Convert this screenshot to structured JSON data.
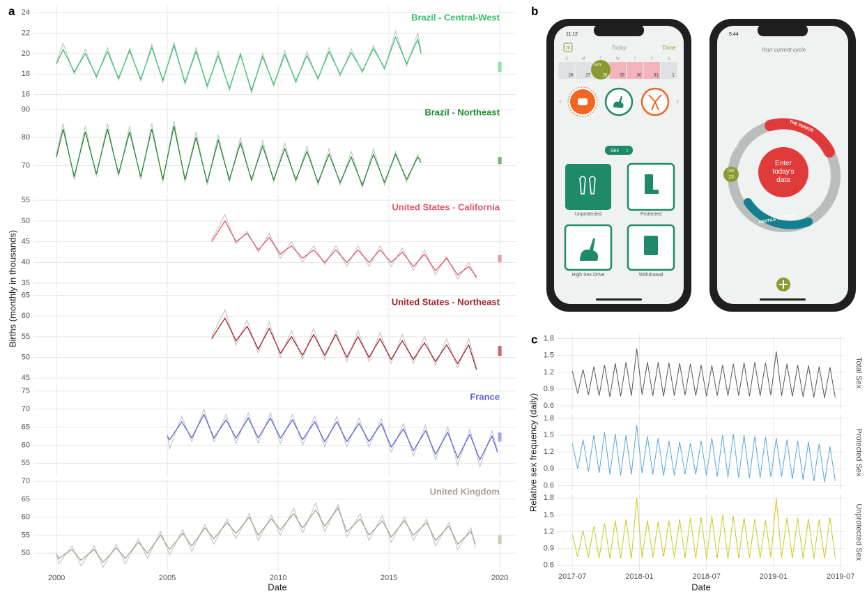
{
  "panel_labels": [
    "a",
    "b",
    "c"
  ],
  "panel_a": {
    "xlabel": "Date",
    "ylabel": "Births (monthly in thousands)"
  },
  "panel_b": {
    "phone1": {
      "time": "11:12",
      "calendar_icon": "28",
      "header": "Today",
      "done": "Done",
      "weekdays": [
        "S",
        "M",
        "T",
        "W",
        "T",
        "F",
        "S"
      ],
      "dates": [
        "26",
        "27",
        "28",
        "29",
        "30",
        "31",
        "1"
      ],
      "month": "MAY",
      "section": "Sex",
      "info": "i",
      "options": [
        "Unprotected",
        "Protected",
        "High Sex Drive",
        "Withdrawal"
      ]
    },
    "phone2": {
      "time": "5:44",
      "header": "Your current cycle",
      "period": "THE PERIOD",
      "pms": "PMS",
      "day_label": "DAY",
      "day_number": "23",
      "center": [
        "Enter",
        "today's",
        "data"
      ],
      "fertile": "FERTILE WINDOW"
    }
  },
  "chart_data": [
    {
      "type": "line",
      "title": "Brazil - Central-West",
      "title_color": "#35c46b",
      "x": [
        2000,
        2000.3,
        2000.8,
        2001.3,
        2001.8,
        2002.3,
        2002.8,
        2003.3,
        2003.8,
        2004.3,
        2004.8,
        2005.3,
        2005.8,
        2006.3,
        2006.8,
        2007.3,
        2007.8,
        2008.3,
        2008.8,
        2009.3,
        2009.8,
        2010.3,
        2010.8,
        2011.3,
        2011.8,
        2012.3,
        2012.8,
        2013.3,
        2013.8,
        2014.3,
        2014.8,
        2015.3,
        2015.8,
        2016.3,
        2016.45
      ],
      "series": [
        {
          "color": "#c4c4c4",
          "values": [
            19.2,
            21.0,
            18.0,
            20.4,
            17.6,
            20.6,
            17.4,
            20.5,
            17.3,
            20.9,
            17.2,
            21.1,
            17.0,
            20.6,
            16.6,
            20.2,
            16.4,
            20.1,
            16.1,
            20.0,
            16.8,
            20.3,
            17.1,
            20.2,
            17.4,
            20.6,
            17.8,
            20.5,
            18.1,
            20.8,
            18.4,
            22.2,
            18.8,
            22.0,
            20.3
          ]
        },
        {
          "color": "#35c46b",
          "values": [
            19.0,
            20.4,
            18.2,
            20.0,
            17.8,
            20.2,
            17.6,
            20.3,
            17.5,
            20.6,
            17.4,
            20.8,
            17.2,
            20.2,
            16.9,
            19.8,
            16.6,
            19.9,
            16.4,
            19.7,
            17.0,
            19.9,
            17.3,
            19.8,
            17.6,
            20.2,
            18.0,
            20.1,
            18.3,
            20.5,
            18.6,
            21.6,
            19.0,
            21.4,
            20.0
          ]
        }
      ],
      "xlim": [
        1998.96,
        2020.72
      ],
      "xticks": [
        2000,
        2005,
        2010,
        2015,
        2020
      ],
      "ylim": [
        15.7,
        24.7
      ],
      "yticks": [
        16,
        18,
        20,
        22,
        24
      ],
      "grid": true,
      "range_marker": {
        "x": 2020,
        "values": [
          18.2,
          19.2
        ],
        "color": "#8fe0ac"
      }
    },
    {
      "type": "line",
      "title": "Brazil - Northeast",
      "title_color": "#1e8a32",
      "x": [
        2000,
        2000.3,
        2000.8,
        2001.3,
        2001.8,
        2002.3,
        2002.8,
        2003.3,
        2003.8,
        2004.3,
        2004.8,
        2005.3,
        2005.8,
        2006.3,
        2006.8,
        2007.3,
        2007.8,
        2008.3,
        2008.8,
        2009.3,
        2009.8,
        2010.3,
        2010.8,
        2011.3,
        2011.8,
        2012.3,
        2012.8,
        2013.3,
        2013.8,
        2014.3,
        2014.8,
        2015.3,
        2015.8,
        2016.3,
        2016.45
      ],
      "series": [
        {
          "color": "#c4c4c4",
          "values": [
            74,
            85,
            65,
            84,
            66,
            85,
            66,
            84,
            65,
            85,
            64,
            86,
            64,
            82,
            63,
            81,
            64,
            80,
            64,
            79,
            64,
            78,
            64,
            77,
            63,
            76,
            63,
            75,
            62,
            76,
            63,
            75,
            64,
            74,
            72
          ]
        },
        {
          "color": "#1e8a32",
          "values": [
            73,
            83,
            66,
            82,
            67,
            83,
            67,
            82,
            66,
            83,
            65,
            84,
            65,
            80,
            64,
            79,
            65,
            78,
            65,
            77,
            65,
            76,
            65,
            75,
            64,
            74,
            64,
            73,
            63,
            74,
            64,
            74,
            65,
            73,
            71
          ]
        }
      ],
      "xlim": [
        1998.96,
        2020.72
      ],
      "xticks": [
        2000,
        2005,
        2010,
        2015,
        2020
      ],
      "ylim": [
        60.4,
        93.2
      ],
      "yticks": [
        70,
        80,
        90
      ],
      "grid": true,
      "range_marker": {
        "x": 2020,
        "values": [
          70.5,
          73
        ],
        "color": "#6fb27c"
      }
    },
    {
      "type": "line",
      "title": "United States - California",
      "title_color": "#e5566b",
      "x": [
        2007.0,
        2007.6,
        2008.1,
        2008.6,
        2009.1,
        2009.6,
        2010.1,
        2010.6,
        2011.1,
        2011.6,
        2012.1,
        2012.6,
        2013.1,
        2013.6,
        2014.1,
        2014.6,
        2015.1,
        2015.6,
        2016.1,
        2016.6,
        2017.1,
        2017.6,
        2018.1,
        2018.6,
        2018.95
      ],
      "series": [
        {
          "color": "#c4c4c4",
          "values": [
            45.5,
            51.5,
            44.5,
            47.5,
            42.5,
            47,
            41,
            45,
            40,
            44,
            39.5,
            44,
            39,
            44,
            39,
            44,
            39,
            43.5,
            38,
            43,
            37,
            41.5,
            36,
            40,
            36
          ]
        },
        {
          "color": "#e5566b",
          "values": [
            45,
            50,
            45,
            47,
            43,
            46,
            42,
            44,
            41,
            43,
            40,
            43,
            40,
            43,
            40,
            43,
            40,
            42.5,
            39,
            42,
            38,
            41,
            37,
            39,
            36.5
          ]
        }
      ],
      "xlim": [
        1998.96,
        2020.72
      ],
      "xticks": [
        2000,
        2005,
        2010,
        2015,
        2020
      ],
      "ylim": [
        34,
        56.2
      ],
      "yticks": [
        35,
        40,
        45,
        50,
        55
      ],
      "grid": true,
      "range_marker": {
        "x": 2020,
        "values": [
          40,
          41.8
        ],
        "color": "#ee97a4"
      }
    },
    {
      "type": "line",
      "title": "United States - Northeast",
      "title_color": "#a5202a",
      "x": [
        2007.0,
        2007.6,
        2008.1,
        2008.6,
        2009.1,
        2009.6,
        2010.1,
        2010.6,
        2011.1,
        2011.6,
        2012.1,
        2012.6,
        2013.1,
        2013.6,
        2014.1,
        2014.6,
        2015.1,
        2015.6,
        2016.1,
        2016.6,
        2017.1,
        2017.6,
        2018.1,
        2018.6,
        2018.95
      ],
      "series": [
        {
          "color": "#c4c4c4",
          "values": [
            55,
            61.5,
            53,
            59,
            51,
            58.5,
            50,
            56.5,
            49.5,
            57,
            49.5,
            56.5,
            49,
            56.5,
            49,
            56,
            48.5,
            55.5,
            48.5,
            55,
            48,
            54.5,
            47.5,
            54.5,
            47.5
          ]
        },
        {
          "color": "#a5202a",
          "values": [
            54.5,
            59.5,
            54,
            57.5,
            52,
            57,
            51,
            55,
            50.5,
            55.5,
            50.5,
            55.5,
            50,
            55,
            50,
            54.5,
            49.5,
            54,
            49.5,
            53.5,
            49,
            53,
            48.5,
            53,
            47
          ]
        }
      ],
      "xlim": [
        1998.96,
        2020.72
      ],
      "xticks": [
        2000,
        2005,
        2010,
        2015,
        2020
      ],
      "ylim": [
        44,
        66.3
      ],
      "yticks": [
        45,
        50,
        55,
        60,
        65
      ],
      "grid": true,
      "range_marker": {
        "x": 2020,
        "values": [
          50.3,
          52.8
        ],
        "color": "#c46a72"
      }
    },
    {
      "type": "line",
      "title": "France",
      "title_color": "#5b63dc",
      "x": [
        2005.0,
        2005.1,
        2005.65,
        2006.1,
        2006.65,
        2007.1,
        2007.65,
        2008.1,
        2008.65,
        2009.1,
        2009.65,
        2010.1,
        2010.65,
        2011.1,
        2011.65,
        2012.1,
        2012.65,
        2013.1,
        2013.65,
        2014.1,
        2014.65,
        2015.1,
        2015.65,
        2016.1,
        2016.65,
        2017.1,
        2017.65,
        2018.1,
        2018.65,
        2019.1,
        2019.65,
        2019.9
      ],
      "series": [
        {
          "color": "#c4c4c4",
          "values": [
            63,
            59,
            68,
            61,
            70,
            61,
            68.5,
            60.5,
            69,
            60.5,
            69,
            60.5,
            68.5,
            60,
            68,
            59.5,
            68,
            59.5,
            67.5,
            59.5,
            67.5,
            58,
            66,
            57,
            65.5,
            56,
            65,
            54.5,
            64.5,
            54,
            64,
            58.5
          ]
        },
        {
          "color": "#5b63dc",
          "values": [
            62.5,
            61.5,
            66.5,
            62,
            68.5,
            62,
            67,
            62,
            67.5,
            62,
            67.5,
            62,
            67,
            61.5,
            66.5,
            61,
            66.5,
            61,
            66,
            61,
            66,
            59.5,
            64.5,
            58.5,
            64,
            57.5,
            63.5,
            56.5,
            63,
            56,
            62.5,
            58
          ]
        }
      ],
      "xlim": [
        1998.96,
        2020.72
      ],
      "xticks": [
        2000,
        2005,
        2010,
        2015,
        2020
      ],
      "ylim": [
        51.2,
        76.7
      ],
      "yticks": [
        55,
        60,
        65,
        70,
        75
      ],
      "grid": true,
      "range_marker": {
        "x": 2020,
        "values": [
          61,
          63.5
        ],
        "color": "#a3a8ee"
      }
    },
    {
      "type": "line",
      "title": "United Kingdom",
      "title_color": "#aaa192",
      "x": [
        2000.0,
        2000.1,
        2000.7,
        2001.1,
        2001.7,
        2002.1,
        2002.7,
        2003.1,
        2003.7,
        2004.1,
        2004.7,
        2005.1,
        2005.7,
        2006.1,
        2006.7,
        2007.1,
        2007.7,
        2008.1,
        2008.7,
        2009.1,
        2009.7,
        2010.1,
        2010.7,
        2011.1,
        2011.7,
        2012.1,
        2012.7,
        2013.1,
        2013.7,
        2014.1,
        2014.7,
        2015.1,
        2015.7,
        2016.1,
        2016.7,
        2017.1,
        2017.7,
        2018.1,
        2018.7,
        2018.9
      ],
      "series": [
        {
          "color": "#c4c4c4",
          "values": [
            50,
            47,
            52,
            46.5,
            52,
            46,
            52.5,
            47,
            54,
            48.5,
            56,
            49.5,
            56.5,
            50.5,
            58,
            52.5,
            59.5,
            54,
            61,
            53.5,
            60.5,
            55,
            62.5,
            55.5,
            64,
            56,
            63.5,
            54.5,
            61,
            53.5,
            60.5,
            53,
            60,
            53.5,
            59.5,
            52,
            58.5,
            51,
            57,
            51.5
          ]
        },
        {
          "color": "#aaa192",
          "values": [
            49.5,
            48.5,
            51,
            48,
            51,
            47.5,
            51.5,
            48.5,
            53,
            50,
            55,
            51,
            55.5,
            52,
            57,
            54,
            58.5,
            55.5,
            60,
            55,
            59.5,
            56.5,
            61,
            57,
            62,
            57.5,
            62.5,
            56,
            59.5,
            55,
            59,
            54.5,
            59,
            55,
            58.5,
            53.5,
            57.5,
            52.5,
            56,
            52.5
          ]
        }
      ],
      "xlim": [
        1998.96,
        2020.72
      ],
      "xticks": [
        2000,
        2005,
        2010,
        2015,
        2020
      ],
      "ylim": [
        44.8,
        70.4
      ],
      "yticks": [
        50,
        55,
        60,
        65,
        70
      ],
      "grid": true,
      "range_marker": {
        "x": 2020,
        "values": [
          52.5,
          55
        ],
        "color": "#cfc9bd"
      }
    },
    {
      "type": "facet-line",
      "xlabel": "Date",
      "ylabel": "Relative sex frequency (daily)",
      "x": [
        2017.5,
        2017.54,
        2017.58,
        2017.62,
        2017.66,
        2017.7,
        2017.74,
        2017.78,
        2017.82,
        2017.86,
        2017.9,
        2017.94,
        2017.98,
        2018.02,
        2018.06,
        2018.1,
        2018.14,
        2018.18,
        2018.22,
        2018.26,
        2018.3,
        2018.34,
        2018.38,
        2018.42,
        2018.46,
        2018.5,
        2018.54,
        2018.58,
        2018.62,
        2018.66,
        2018.7,
        2018.74,
        2018.78,
        2018.82,
        2018.86,
        2018.9,
        2018.94,
        2018.98,
        2019.02,
        2019.06,
        2019.1,
        2019.14,
        2019.18,
        2019.22,
        2019.26,
        2019.3,
        2019.34,
        2019.38,
        2019.42,
        2019.46
      ],
      "series": [
        {
          "name": "Total Sex",
          "color": "#555555",
          "values": [
            1.22,
            0.82,
            1.25,
            0.8,
            1.3,
            0.78,
            1.33,
            0.76,
            1.36,
            0.77,
            1.38,
            0.78,
            1.62,
            0.8,
            1.38,
            0.78,
            1.38,
            0.77,
            1.37,
            0.78,
            1.36,
            0.79,
            1.35,
            0.78,
            1.33,
            0.77,
            1.32,
            0.78,
            1.33,
            0.78,
            1.35,
            0.78,
            1.37,
            0.77,
            1.38,
            0.78,
            1.37,
            0.79,
            1.57,
            0.78,
            1.35,
            0.77,
            1.33,
            0.76,
            1.32,
            0.75,
            1.3,
            0.74,
            1.29,
            0.75
          ]
        },
        {
          "name": "Protected Sex",
          "color": "#55a7e2",
          "values": [
            1.35,
            0.9,
            1.42,
            0.85,
            1.5,
            0.83,
            1.55,
            0.8,
            1.52,
            0.78,
            1.5,
            0.8,
            1.68,
            0.82,
            1.48,
            0.8,
            1.45,
            0.78,
            1.4,
            0.78,
            1.38,
            0.8,
            1.36,
            0.8,
            1.4,
            0.78,
            1.45,
            0.76,
            1.5,
            0.75,
            1.52,
            0.74,
            1.5,
            0.73,
            1.48,
            0.74,
            1.47,
            0.75,
            1.45,
            0.76,
            1.42,
            0.72,
            1.4,
            0.7,
            1.38,
            0.68,
            1.35,
            0.66,
            1.3,
            0.68
          ]
        },
        {
          "name": "Unprotected Sex",
          "color": "#c9cc1a",
          "values": [
            1.15,
            0.75,
            1.22,
            0.74,
            1.3,
            0.73,
            1.35,
            0.72,
            1.4,
            0.72,
            1.42,
            0.72,
            1.8,
            0.73,
            1.4,
            0.74,
            1.38,
            0.75,
            1.4,
            0.74,
            1.42,
            0.73,
            1.45,
            0.72,
            1.46,
            0.72,
            1.48,
            0.72,
            1.5,
            0.72,
            1.48,
            0.72,
            1.45,
            0.73,
            1.43,
            0.73,
            1.4,
            0.74,
            1.8,
            0.74,
            1.45,
            0.73,
            1.44,
            0.72,
            1.43,
            0.72,
            1.42,
            0.72,
            1.45,
            0.73
          ]
        }
      ],
      "xlim": [
        2017.39,
        2019.53
      ],
      "xticks": [
        {
          "value": 2017.5,
          "label": "2017-07"
        },
        {
          "value": 2018.0,
          "label": "2018-01"
        },
        {
          "value": 2018.5,
          "label": "2018-07"
        },
        {
          "value": 2019.0,
          "label": "2019-01"
        },
        {
          "value": 2019.5,
          "label": "2019-07"
        }
      ],
      "ylim": [
        0.51,
        1.87
      ],
      "yticks": [
        0.6,
        0.9,
        1.2,
        1.5,
        1.8
      ],
      "grid": true
    }
  ]
}
